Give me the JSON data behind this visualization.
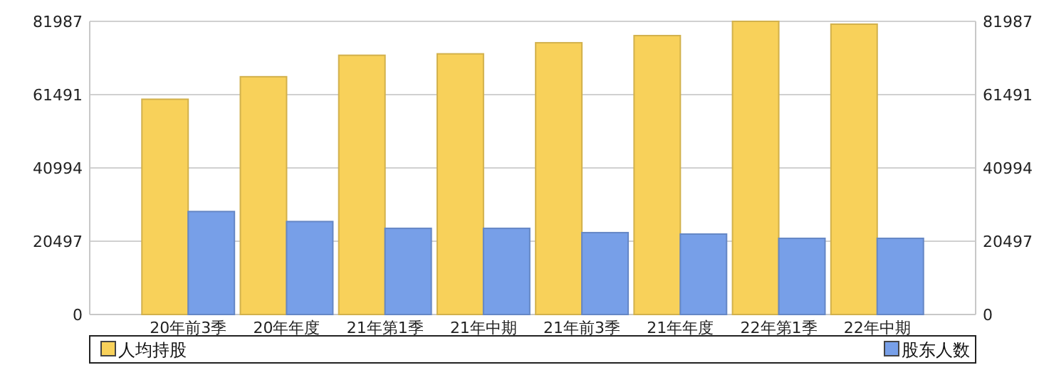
{
  "chart_data": {
    "type": "bar",
    "categories": [
      "20年前3季",
      "20年年度",
      "21年第1季",
      "21年中期",
      "21年前3季",
      "21年年度",
      "22年第1季",
      "22年中期"
    ],
    "series": [
      {
        "name": "人均持股",
        "color": "#f8d15a",
        "values": [
          60200,
          66500,
          72500,
          72900,
          76000,
          78000,
          81987,
          81200
        ]
      },
      {
        "name": "股东人数",
        "color": "#779fe8",
        "values": [
          28800,
          26000,
          24100,
          24100,
          22900,
          22500,
          21300,
          21300
        ]
      }
    ],
    "ylim": [
      0,
      81987
    ],
    "yticks": [
      0,
      20497,
      40994,
      61491,
      81987
    ],
    "y2lim": [
      0,
      81987
    ],
    "y2ticks": [
      0,
      20497,
      40994,
      61491,
      81987
    ],
    "grid": "y",
    "legend": "bottom"
  }
}
